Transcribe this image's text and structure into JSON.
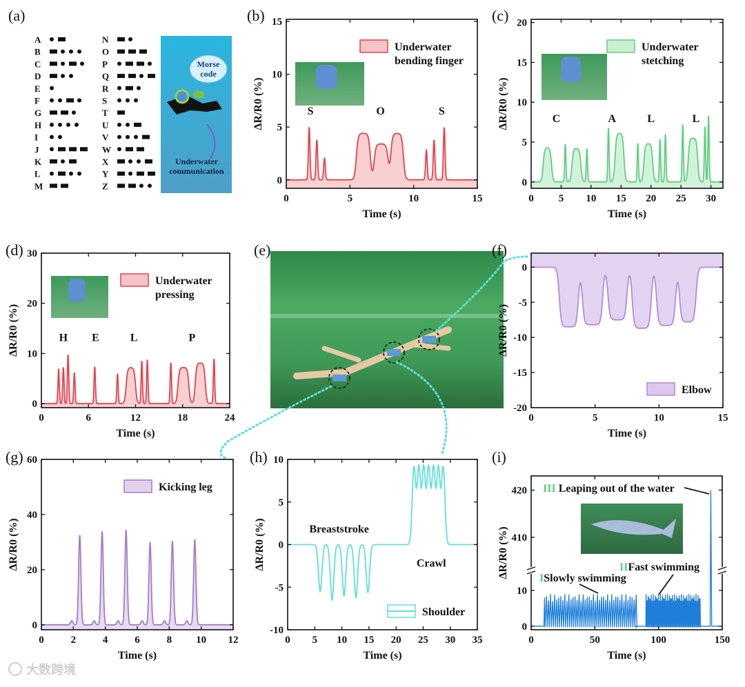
{
  "watermark": "大数跨境",
  "panel_a": {
    "label": "(a)",
    "morse": [
      [
        "A",
        ".-"
      ],
      [
        "B",
        "-..."
      ],
      [
        "C",
        "-.-."
      ],
      [
        "D",
        "-.."
      ],
      [
        "E",
        "."
      ],
      [
        "F",
        "..-."
      ],
      [
        "G",
        "--."
      ],
      [
        "H",
        "...."
      ],
      [
        "I",
        ".."
      ],
      [
        "J",
        ".---"
      ],
      [
        "K",
        "-.-"
      ],
      [
        "L",
        ".-.."
      ],
      [
        "M",
        "--"
      ],
      [
        "N",
        "-."
      ],
      [
        "O",
        "---"
      ],
      [
        "P",
        ".--."
      ],
      [
        "Q",
        "--.-"
      ],
      [
        "R",
        ".-."
      ],
      [
        "S",
        "..."
      ],
      [
        "T",
        "-"
      ],
      [
        "U",
        "..-"
      ],
      [
        "V",
        "...-"
      ],
      [
        "W",
        ".--"
      ],
      [
        "X",
        "-..-"
      ],
      [
        "Y",
        "-.--"
      ],
      [
        "Z",
        "--.."
      ]
    ],
    "cloud_text": [
      "Morse",
      "code"
    ],
    "caption": [
      "Underwater",
      "communication"
    ],
    "colors": {
      "bg_top": "#29b6e0",
      "bg_bottom": "#4f9fc7"
    }
  },
  "panel_e": {
    "label": "(e)"
  },
  "chart_data": [
    {
      "id": "b",
      "label": "(b)",
      "type": "line",
      "xlabel": "Time (s)",
      "ylabel": "ΔR/R0 (%)",
      "xlim": [
        0,
        15
      ],
      "ylim": [
        -0.8,
        15.2
      ],
      "xticks": [
        0,
        5,
        10,
        15
      ],
      "yticks": [
        0,
        5,
        10,
        15
      ],
      "color": "#e8414a",
      "fill": "#f6c4c6",
      "legend": [
        "Underwater",
        "bending finger"
      ],
      "legend_position": "top-right",
      "annotations": [
        {
          "text": "S",
          "x": 1.9,
          "y": 6.2
        },
        {
          "text": "O",
          "x": 7.4,
          "y": 6.2
        },
        {
          "text": "S",
          "x": 12.2,
          "y": 6.2
        }
      ],
      "spikes": [
        [
          1.8,
          5.0
        ],
        [
          2.4,
          3.8
        ],
        [
          3.0,
          2.1
        ],
        [
          11.0,
          2.8
        ],
        [
          11.6,
          3.8
        ],
        [
          12.4,
          5.0
        ]
      ],
      "plateaus": [
        [
          5.5,
          6.6,
          4.4
        ],
        [
          6.9,
          8.0,
          3.4
        ],
        [
          8.2,
          9.2,
          4.4
        ]
      ],
      "spike_width": 0.09
    },
    {
      "id": "c",
      "label": "(c)",
      "type": "line",
      "xlabel": "Time (s)",
      "ylabel": "ΔR/R0 (%)",
      "xlim": [
        0,
        32
      ],
      "ylim": [
        -0.8,
        20.4
      ],
      "xticks": [
        0,
        5,
        10,
        15,
        20,
        25,
        30
      ],
      "yticks": [
        0,
        5,
        10,
        15,
        20
      ],
      "color": "#5fcf7e",
      "fill": "#c8efd2",
      "legend": [
        "Underwater",
        "stetching"
      ],
      "legend_position": "top-right",
      "annotations": [
        {
          "text": "C",
          "x": 4.2,
          "y": 7.5
        },
        {
          "text": "A",
          "x": 13.5,
          "y": 7.5
        },
        {
          "text": "L",
          "x": 20.0,
          "y": 7.5
        },
        {
          "text": "L",
          "x": 27.5,
          "y": 7.5
        }
      ],
      "spikes": [
        [
          5.7,
          4.8
        ],
        [
          9.3,
          4.2
        ],
        [
          12.9,
          6.8
        ],
        [
          17.8,
          4.9
        ],
        [
          21.5,
          5.4
        ],
        [
          22.4,
          6.0
        ],
        [
          25.3,
          7.3
        ],
        [
          29.0,
          7.0
        ],
        [
          29.6,
          8.4
        ]
      ],
      "plateaus": [
        [
          2.0,
          3.4,
          4.3
        ],
        [
          6.8,
          8.3,
          4.2
        ],
        [
          14.0,
          15.5,
          6.1
        ],
        [
          18.8,
          20.3,
          4.8
        ],
        [
          26.2,
          27.8,
          5.5
        ]
      ],
      "spike_width": 0.15
    },
    {
      "id": "d",
      "label": "(d)",
      "type": "line",
      "xlabel": "Time (s)",
      "ylabel": "ΔR/R0 (%)",
      "xlim": [
        0,
        24
      ],
      "ylim": [
        -0.8,
        30
      ],
      "xticks": [
        0,
        6,
        12,
        18,
        24
      ],
      "yticks": [
        0,
        10,
        20,
        30
      ],
      "color": "#e8414a",
      "fill": "#f6c4c6",
      "legend": [
        "Underwater",
        "pressing"
      ],
      "legend_position": "top-right",
      "annotations": [
        {
          "text": "H",
          "x": 2.8,
          "y": 12.5
        },
        {
          "text": "E",
          "x": 6.9,
          "y": 12.5
        },
        {
          "text": "L",
          "x": 11.8,
          "y": 12.5
        },
        {
          "text": "P",
          "x": 19.2,
          "y": 12.5
        }
      ],
      "spikes": [
        [
          2.2,
          7.0
        ],
        [
          2.8,
          7.3
        ],
        [
          3.4,
          9.8
        ],
        [
          4.2,
          6.2
        ],
        [
          6.8,
          7.4
        ],
        [
          9.7,
          6.0
        ],
        [
          12.8,
          8.6
        ],
        [
          13.5,
          8.8
        ],
        [
          16.5,
          8.2
        ],
        [
          22.0,
          9.0
        ]
      ],
      "plateaus": [
        [
          10.8,
          12.0,
          7.2
        ],
        [
          17.4,
          18.8,
          7.2
        ],
        [
          19.6,
          20.9,
          8.1
        ]
      ],
      "spike_width": 0.12
    },
    {
      "id": "f",
      "label": "(f)",
      "type": "area",
      "xlabel": "Time (s)",
      "ylabel": "ΔR/R0 (%)",
      "xlim": [
        0,
        15
      ],
      "ylim": [
        -20,
        2
      ],
      "xticks": [
        0,
        5,
        10,
        15
      ],
      "yticks": [
        0,
        -5,
        -10,
        -15,
        -20
      ],
      "color": "#b48ad6",
      "fill": "#dcc8ee",
      "fill_to": "top",
      "legend": [
        "Elbow"
      ],
      "legend_position": "bottom-right",
      "annotations": [],
      "spikes": [],
      "plateaus": [
        [
          2.2,
          3.7,
          -8.5
        ],
        [
          4.0,
          5.6,
          -8.2
        ],
        [
          6.0,
          7.5,
          -7.5
        ],
        [
          7.9,
          9.4,
          -8.7
        ],
        [
          9.8,
          11.3,
          -8.3
        ],
        [
          11.6,
          12.9,
          -7.8
        ]
      ],
      "spike_width": 0.1
    },
    {
      "id": "g",
      "label": "(g)",
      "type": "line",
      "xlabel": "Time (s)",
      "ylabel": "ΔR/R0 (%)",
      "xlim": [
        0,
        12
      ],
      "ylim": [
        -1.8,
        60
      ],
      "xticks": [
        0,
        2,
        4,
        6,
        8,
        10,
        12
      ],
      "yticks": [
        0,
        20,
        40,
        60
      ],
      "color": "#a47cc8",
      "fill": "#e2d2f0",
      "legend": [
        "Kicking leg"
      ],
      "legend_position": "top-right",
      "annotations": [],
      "spikes": [
        [
          2.4,
          32.5
        ],
        [
          3.8,
          34.0
        ],
        [
          5.3,
          34.5
        ],
        [
          6.8,
          30.0
        ],
        [
          8.2,
          30.5
        ],
        [
          9.6,
          31.0
        ],
        [
          1.9,
          1.5
        ],
        [
          3.3,
          1.5
        ],
        [
          4.8,
          1.5
        ],
        [
          6.3,
          1.5
        ],
        [
          7.7,
          1.5
        ],
        [
          9.1,
          1.5
        ]
      ],
      "plateaus": [],
      "spike_width": 0.1
    },
    {
      "id": "h",
      "label": "(h)",
      "type": "line",
      "xlabel": "Time (s)",
      "ylabel": "ΔR/R0 (%)",
      "xlim": [
        0,
        35
      ],
      "ylim": [
        -10,
        10
      ],
      "xticks": [
        0,
        5,
        10,
        15,
        20,
        25,
        30,
        35
      ],
      "yticks": [
        -10,
        -5,
        0,
        5,
        10
      ],
      "color": "#5fe0d8",
      "fill": "none",
      "legend": [
        "Shoulder"
      ],
      "legend_position": "bottom-right",
      "annotations": [
        {
          "text": "Breaststroke",
          "x": 9.5,
          "y": 1.4
        },
        {
          "text": "Crawl",
          "x": 26.5,
          "y": -2.6
        }
      ],
      "spikes": [
        [
          6.0,
          -5.5
        ],
        [
          8.2,
          -6.5
        ],
        [
          10.4,
          -6.0
        ],
        [
          12.6,
          -6.2
        ],
        [
          14.8,
          -5.6
        ],
        [
          23.3,
          9.0
        ],
        [
          24.2,
          9.0
        ],
        [
          25.1,
          9.0
        ],
        [
          26.0,
          9.0
        ],
        [
          26.9,
          9.0
        ],
        [
          27.8,
          9.0
        ],
        [
          28.7,
          9.0
        ]
      ],
      "plateaus": [],
      "spike_width": 0.45
    },
    {
      "id": "i",
      "label": "(i)",
      "type": "line",
      "xlabel": "Time (s)",
      "ylabel": "ΔR/R0 (%)",
      "xlim": [
        0,
        150
      ],
      "ylim_lower": [
        -1,
        15
      ],
      "ylim_upper": [
        404,
        423
      ],
      "xticks": [
        0,
        50,
        100,
        150
      ],
      "yticks": [
        0,
        10,
        410,
        420
      ],
      "color": "#1f7fd8",
      "fill": "none",
      "annotations": [
        {
          "roman": "III",
          "text": " Leaping out of the water"
        },
        {
          "roman": "II",
          "text": "Fast swimming"
        },
        {
          "roman": "I",
          "text": "Slowly swimming"
        }
      ],
      "roman_color": "#5fcf7e",
      "bands": [
        {
          "x": [
            10,
            82
          ],
          "period": 1.6,
          "amp": [
            7,
            9
          ]
        },
        {
          "x": [
            90,
            133
          ],
          "period": 0.8,
          "amp": [
            7,
            9
          ]
        }
      ],
      "peak": [
        141,
        420
      ]
    }
  ]
}
